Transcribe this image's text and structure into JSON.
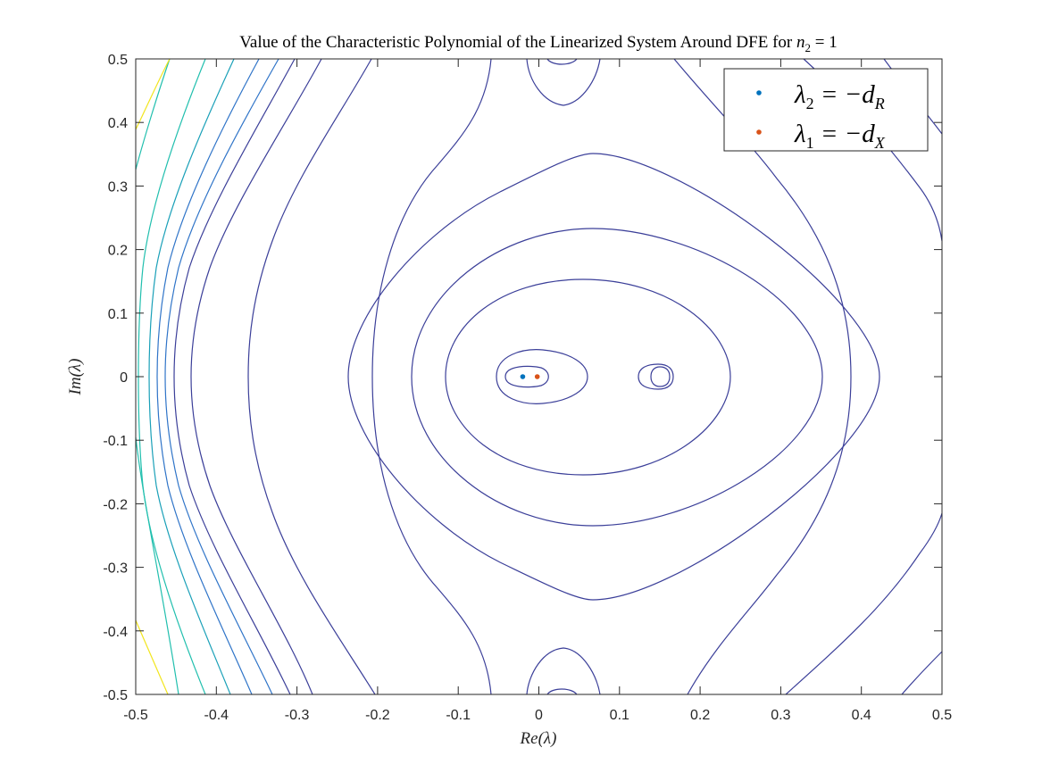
{
  "chart_data": {
    "type": "contour",
    "title": "Value of the Characteristic Polynomial of the Linearized System Around DFE for n2 = 1",
    "title_text": "Value of the Characteristic Polynomial of the Linearized System Around DFE for ",
    "title_math": "n",
    "title_math_sub": "2",
    "title_math_tail": " = 1",
    "xlabel": "Re(λ)",
    "ylabel": "Im(λ)",
    "xlim": [
      -0.5,
      0.5
    ],
    "ylim": [
      -0.5,
      0.5
    ],
    "xticks": [
      "-0.5",
      "-0.4",
      "-0.3",
      "-0.2",
      "-0.1",
      "0",
      "0.1",
      "0.2",
      "0.3",
      "0.4",
      "0.5"
    ],
    "yticks": [
      "0.5",
      "0.4",
      "0.3",
      "0.2",
      "0.1",
      "0",
      "-0.1",
      "-0.2",
      "-0.3",
      "-0.4",
      "-0.5"
    ],
    "grid": false,
    "legend_position": "top-right",
    "legend": [
      {
        "label": "λ2 = −dR",
        "color": "#0072BD",
        "main": "λ",
        "sub": "2",
        "rhs": " = −d",
        "rhs_sub": "R"
      },
      {
        "label": "λ1 = −dX",
        "color": "#D95319",
        "main": "λ",
        "sub": "1",
        "rhs": " = −d",
        "rhs_sub": "X"
      }
    ],
    "points": [
      {
        "series": "λ2 = −dR",
        "x": -0.02,
        "y": 0.0,
        "color": "#0072BD"
      },
      {
        "series": "λ1 = −dX",
        "x": -0.002,
        "y": 0.0,
        "color": "#D95319"
      }
    ],
    "contour_colors": {
      "dark": "#3b3f99",
      "blue": "#2f74c8",
      "teal": "#1aa0b8",
      "cyan": "#21bfae",
      "yellow": "#f2e51d"
    }
  }
}
